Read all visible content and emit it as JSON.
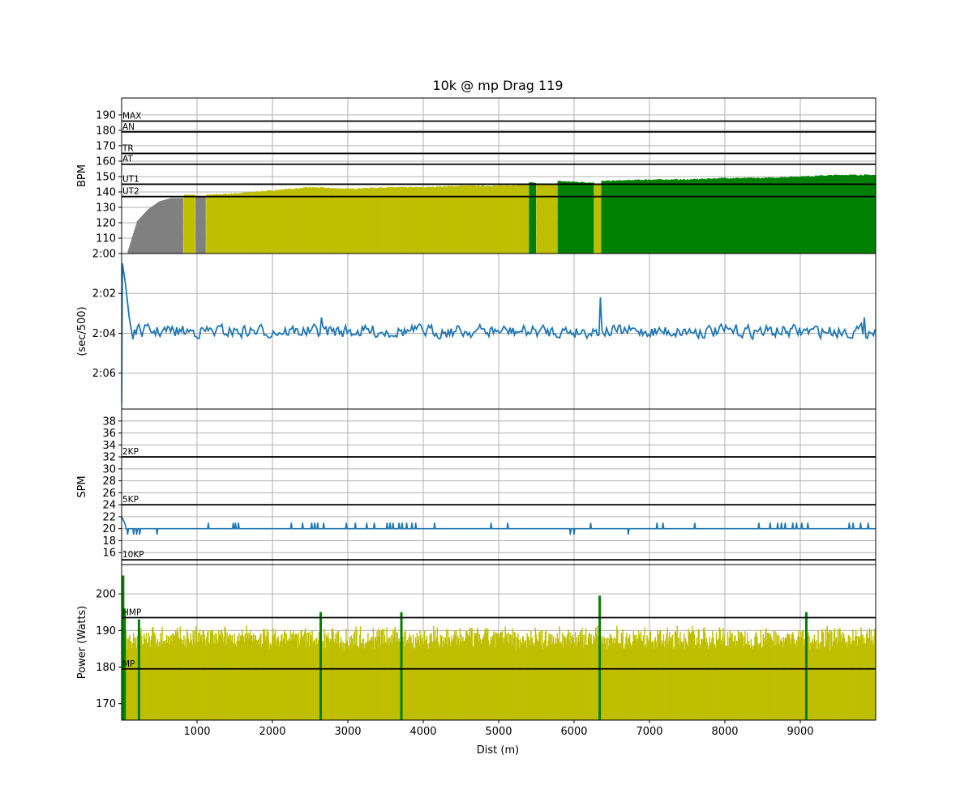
{
  "chart_data": {
    "title": "10k @ mp Drag 119",
    "x_axis": {
      "label": "Dist (m)",
      "range": [
        0,
        10000
      ],
      "ticks": [
        1000,
        2000,
        3000,
        4000,
        5000,
        6000,
        7000,
        8000,
        9000
      ]
    },
    "colors": {
      "bar_gray": "#808080",
      "bar_yellow": "#bfbf00",
      "bar_green": "#008000",
      "line_blue": "#1f77b4",
      "grid": "#b0b0b0"
    },
    "panels": [
      {
        "id": "hr",
        "type": "bar",
        "ylabel": "BPM",
        "ylim": [
          100,
          201
        ],
        "yticks": [
          110,
          120,
          130,
          140,
          150,
          160,
          170,
          180,
          190
        ],
        "zones": [
          {
            "label": "MAX",
            "value": 186
          },
          {
            "label": "AN",
            "value": 179
          },
          {
            "label": "TR",
            "value": 165
          },
          {
            "label": "AT",
            "value": 158
          },
          {
            "label": "UT1",
            "value": 145
          },
          {
            "label": "UT2",
            "value": 137
          }
        ],
        "series": [
          {
            "x": [
              80,
              200,
              350,
              500,
              650,
              800
            ],
            "values": [
              102,
              121,
              129,
              134,
              136,
              136
            ],
            "color": "gray"
          },
          {
            "x": [
              820,
              960
            ],
            "values": [
              138,
              138
            ],
            "color": "yellow"
          },
          {
            "x": [
              980,
              1100
            ],
            "values": [
              137,
              137
            ],
            "color": "gray"
          },
          {
            "x": [
              1120,
              1500,
              2000,
              2500,
              3000,
              3500,
              4000,
              4500,
              5000,
              5380
            ],
            "values": [
              138,
              139,
              141,
              143,
              142,
              143,
              143,
              144,
              144,
              145
            ],
            "color": "yellow"
          },
          {
            "x": [
              5400,
              5480
            ],
            "values": [
              146,
              146
            ],
            "color": "green"
          },
          {
            "x": [
              5500,
              5760
            ],
            "values": [
              145,
              145
            ],
            "color": "yellow"
          },
          {
            "x": [
              5780,
              6250
            ],
            "values": [
              147,
              146
            ],
            "color": "green"
          },
          {
            "x": [
              6260,
              6350
            ],
            "values": [
              145,
              145
            ],
            "color": "yellow"
          },
          {
            "x": [
              6360,
              7000,
              7500,
              8000,
              8500,
              9000,
              9500,
              10000
            ],
            "values": [
              147,
              148,
              148,
              149,
              149,
              150,
              151,
              151
            ],
            "color": "green"
          }
        ]
      },
      {
        "id": "pace",
        "type": "line",
        "ylabel": "(sec/500)",
        "ylim": [
          127.8,
          120
        ],
        "yticks": [
          120,
          122,
          124,
          126
        ],
        "ytick_labels": [
          "2:00",
          "2:02",
          "2:04",
          "2:06"
        ],
        "mean": 123.9,
        "amplitude": 0.45,
        "start": [
          {
            "x": 0,
            "y": 127.5
          },
          {
            "x": 10,
            "y": 120.5
          },
          {
            "x": 50,
            "y": 121.5
          },
          {
            "x": 100,
            "y": 123.2
          },
          {
            "x": 150,
            "y": 124.3
          }
        ],
        "extremes": [
          {
            "x": 2650,
            "y": 123.2
          },
          {
            "x": 3200,
            "y": 123.3
          },
          {
            "x": 6350,
            "y": 122.2
          },
          {
            "x": 9000,
            "y": 124.7
          },
          {
            "x": 9850,
            "y": 123.2
          },
          {
            "x": 10000,
            "y": 124.5
          }
        ]
      },
      {
        "id": "spm",
        "type": "line",
        "ylabel": "SPM",
        "ylim": [
          14,
          40
        ],
        "yticks": [
          16,
          18,
          20,
          22,
          24,
          26,
          28,
          30,
          32,
          34,
          36,
          38
        ],
        "zones": [
          {
            "label": "2KP",
            "value": 32
          },
          {
            "label": "5KP",
            "value": 24
          },
          {
            "label": "10KP",
            "value": 14.8
          }
        ],
        "baseline": 20,
        "spikes_up": [
          1150,
          1480,
          1510,
          1550,
          2250,
          2400,
          2520,
          2560,
          2600,
          2680,
          2980,
          3100,
          3250,
          3350,
          3520,
          3560,
          3600,
          3680,
          3720,
          3780,
          3850,
          3900,
          4150,
          4900,
          5120,
          6220,
          7100,
          7180,
          7600,
          8450,
          8600,
          8700,
          8750,
          8800,
          8900,
          8950,
          9020,
          9100,
          9650,
          9700,
          9800,
          9900
        ],
        "spikes_down": [
          50,
          80,
          160,
          200,
          240,
          470,
          5950,
          6000,
          6720
        ],
        "start": [
          {
            "x": 0,
            "y": 22
          },
          {
            "x": 40,
            "y": 21
          }
        ]
      },
      {
        "id": "power",
        "type": "bar",
        "ylabel": "Power (Watts)",
        "ylim": [
          165.5,
          208
        ],
        "yticks": [
          170,
          180,
          190,
          200
        ],
        "zones": [
          {
            "label": "HMP",
            "value": 193.5
          },
          {
            "label": "MP",
            "value": 179.5
          }
        ],
        "mean": 188,
        "amplitude": 2.5,
        "spikes": [
          {
            "x": 20,
            "value": 205
          },
          {
            "x": 40,
            "value": 196
          },
          {
            "x": 230,
            "value": 193
          },
          {
            "x": 2640,
            "value": 195
          },
          {
            "x": 3710,
            "value": 195
          },
          {
            "x": 6340,
            "value": 199.5
          },
          {
            "x": 9080,
            "value": 195
          }
        ]
      }
    ]
  }
}
